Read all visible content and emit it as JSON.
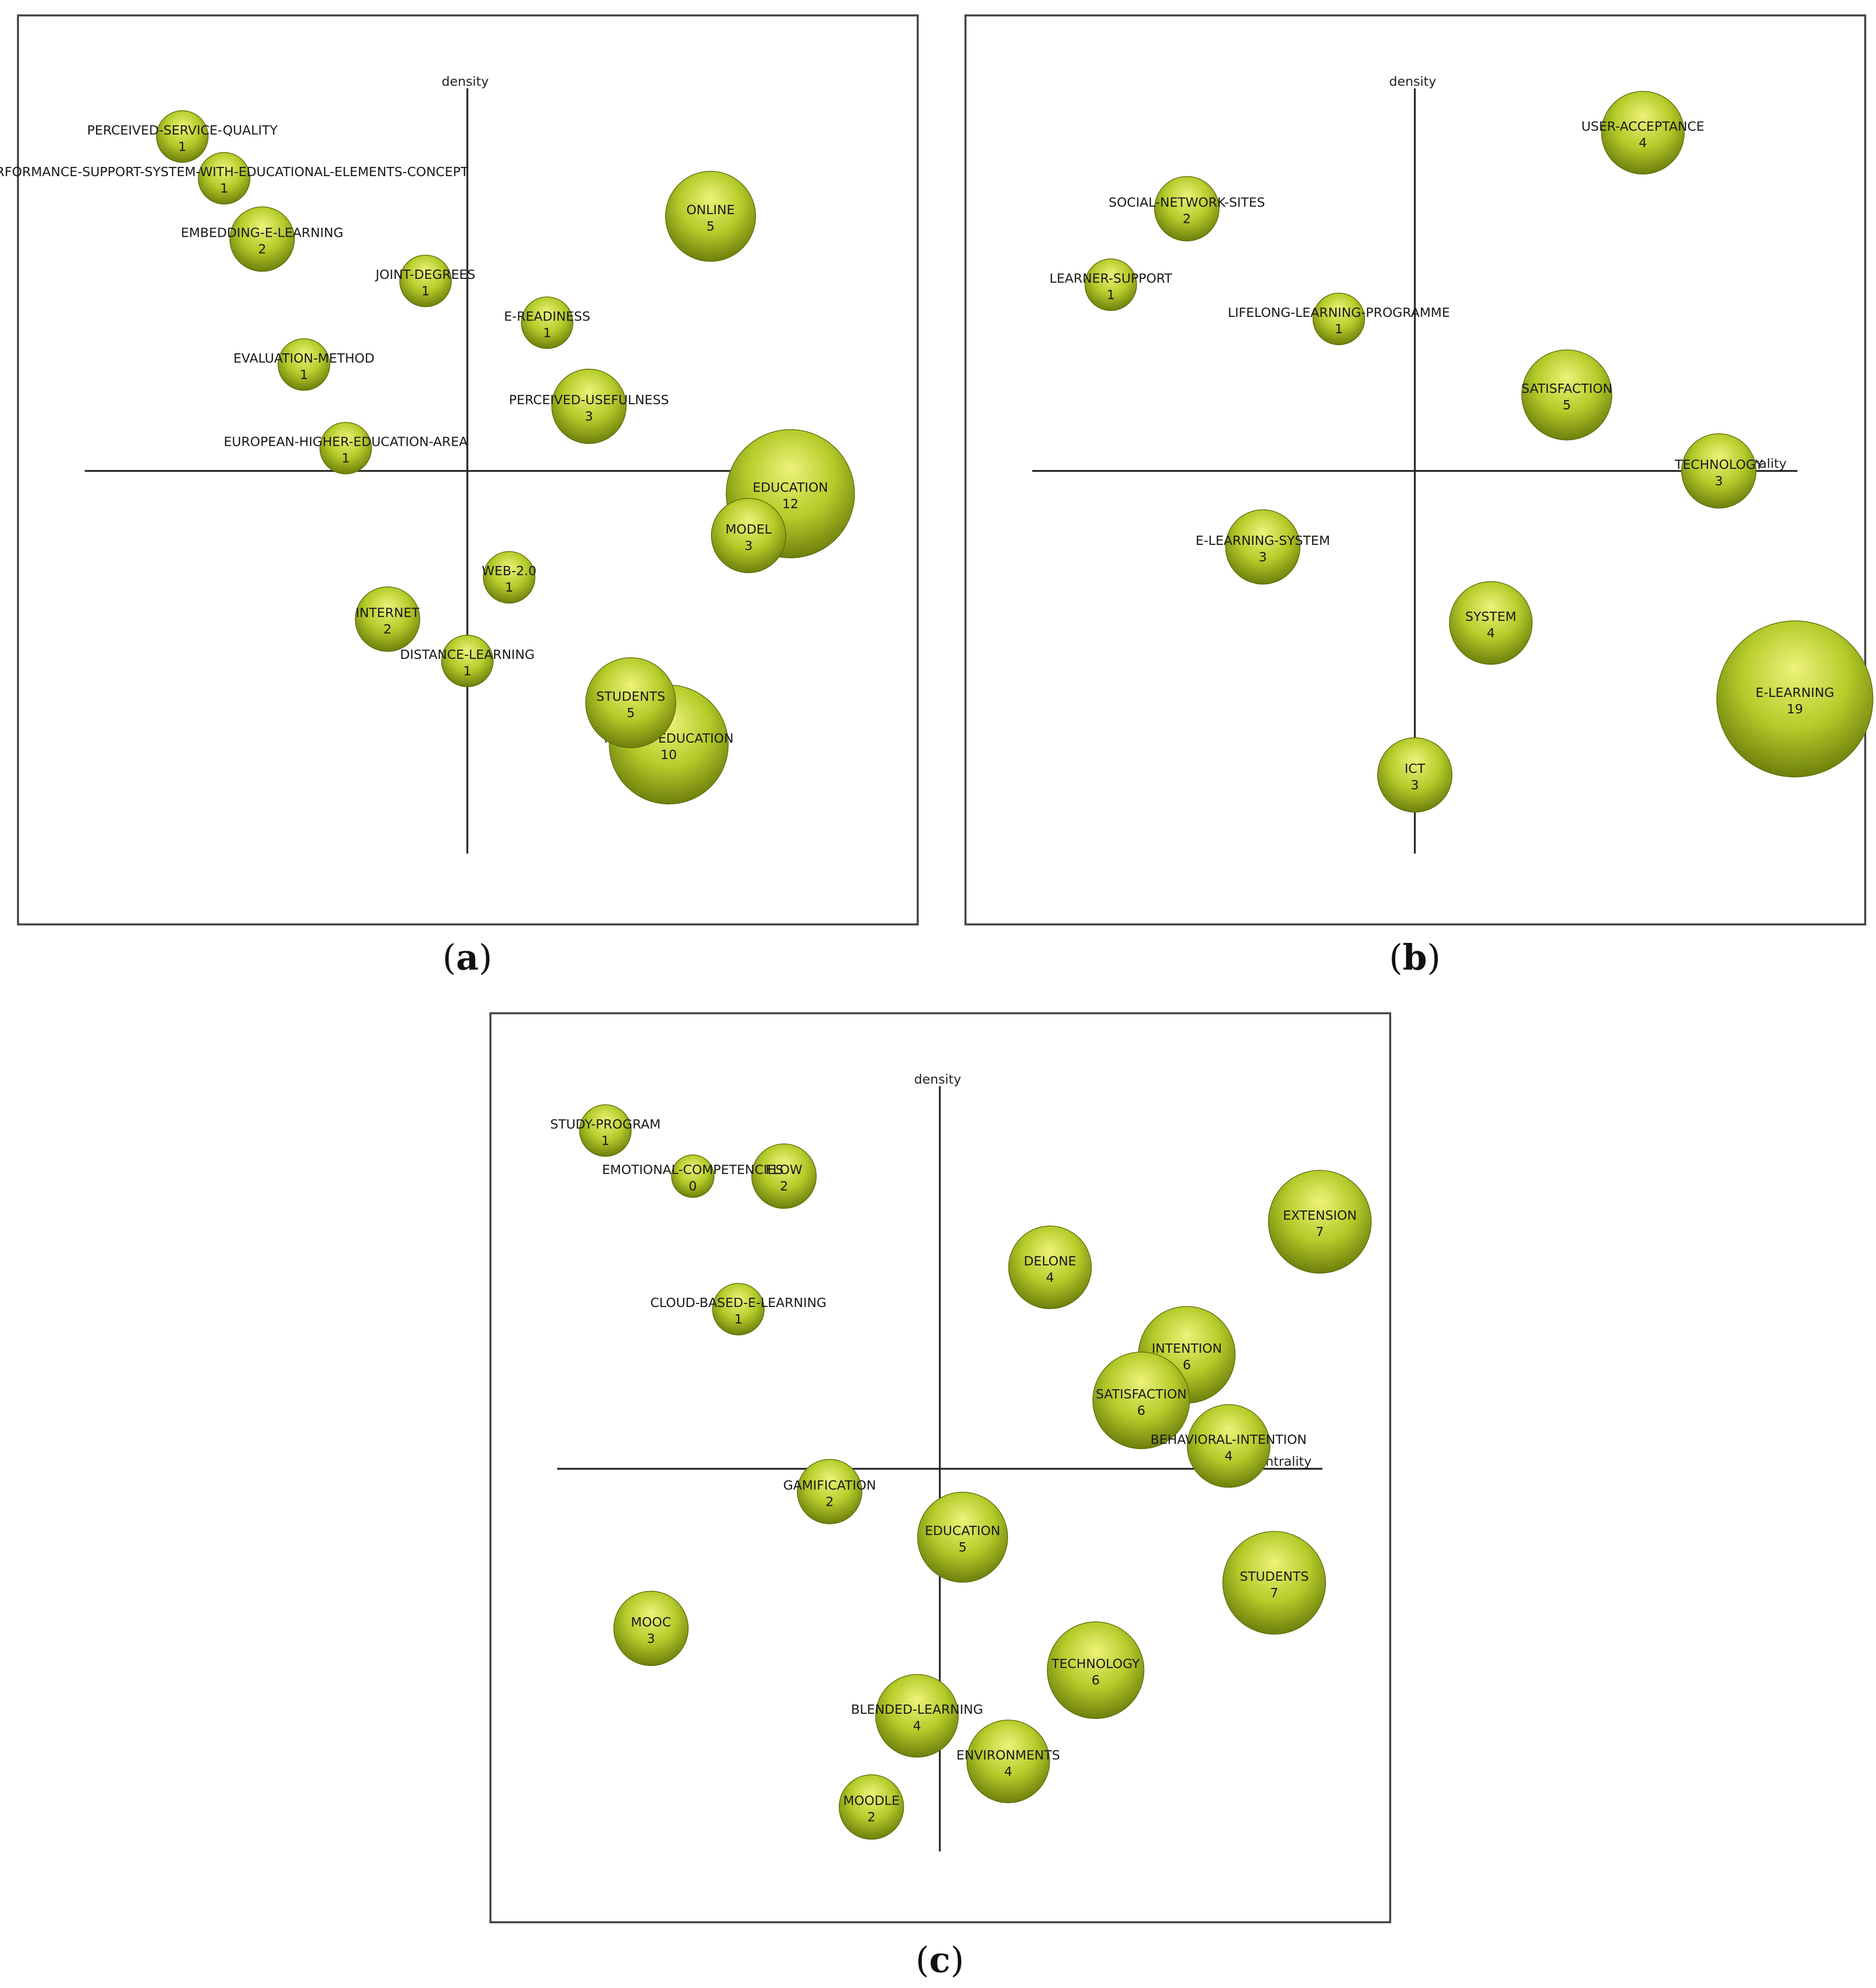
{
  "colors": {
    "bubble_light": "#eef27a",
    "bubble_mid": "#b5cc2a",
    "bubble_dark": "#6f7f0c",
    "bubble_edge": "#5f6e0a"
  },
  "chart_data": [
    {
      "type": "scatter",
      "caption": "a",
      "axis_x_label": "centrality",
      "axis_y_label": "density",
      "points": [
        {
          "label": "PERCEIVED-SERVICE-QUALITY",
          "value": 1,
          "x": -0.75,
          "y": 0.88
        },
        {
          "label": "PERFORMANCE-SUPPORT-SYSTEM-WITH-EDUCATIONAL-ELEMENTS-CONCEPT",
          "value": 1,
          "x": -0.64,
          "y": 0.77
        },
        {
          "label": "ONLINE",
          "value": 5,
          "x": 0.64,
          "y": 0.67
        },
        {
          "label": "EMBEDDING-E-LEARNING",
          "value": 2,
          "x": -0.54,
          "y": 0.61
        },
        {
          "label": "JOINT-DEGREES",
          "value": 1,
          "x": -0.11,
          "y": 0.5
        },
        {
          "label": "E-READINESS",
          "value": 1,
          "x": 0.21,
          "y": 0.39
        },
        {
          "label": "EVALUATION-METHOD",
          "value": 1,
          "x": -0.43,
          "y": 0.28
        },
        {
          "label": "PERCEIVED-USEFULNESS",
          "value": 3,
          "x": 0.32,
          "y": 0.17
        },
        {
          "label": "EUROPEAN-HIGHER-EDUCATION-AREA",
          "value": 1,
          "x": -0.32,
          "y": 0.06
        },
        {
          "label": "EDUCATION",
          "value": 12,
          "x": 0.85,
          "y": -0.06
        },
        {
          "label": "MODEL",
          "value": 3,
          "x": 0.74,
          "y": -0.17
        },
        {
          "label": "WEB-2.0",
          "value": 1,
          "x": 0.11,
          "y": -0.28
        },
        {
          "label": "INTERNET",
          "value": 2,
          "x": -0.21,
          "y": -0.39
        },
        {
          "label": "DISTANCE-LEARNING",
          "value": 1,
          "x": 0.0,
          "y": -0.5
        },
        {
          "label": "STUDENTS",
          "value": 5,
          "x": 0.43,
          "y": -0.61
        },
        {
          "label": "HIGHER-EDUCATION",
          "value": 10,
          "x": 0.53,
          "y": -0.72
        }
      ]
    },
    {
      "type": "scatter",
      "caption": "b",
      "axis_x_label": "centrality",
      "axis_y_label": "density",
      "points": [
        {
          "label": "USER-ACCEPTANCE",
          "value": 4,
          "x": 0.6,
          "y": 0.89
        },
        {
          "label": "SOCIAL-NETWORK-SITES",
          "value": 2,
          "x": -0.6,
          "y": 0.69
        },
        {
          "label": "LEARNER-SUPPORT",
          "value": 1,
          "x": -0.8,
          "y": 0.49
        },
        {
          "label": "LIFELONG-LEARNING-PROGRAMME",
          "value": 1,
          "x": -0.2,
          "y": 0.4
        },
        {
          "label": "SATISFACTION",
          "value": 5,
          "x": 0.4,
          "y": 0.2
        },
        {
          "label": "TECHNOLOGY",
          "value": 3,
          "x": 0.8,
          "y": 0.0
        },
        {
          "label": "E-LEARNING-SYSTEM",
          "value": 3,
          "x": -0.4,
          "y": -0.2
        },
        {
          "label": "SYSTEM",
          "value": 4,
          "x": 0.2,
          "y": -0.4
        },
        {
          "label": "E-LEARNING",
          "value": 19,
          "x": 1.0,
          "y": -0.6
        },
        {
          "label": "ICT",
          "value": 3,
          "x": 0.0,
          "y": -0.8
        }
      ]
    },
    {
      "type": "scatter",
      "caption": "c",
      "axis_x_label": "centrality",
      "axis_y_label": "density",
      "points": [
        {
          "label": "STUDY-PROGRAM",
          "value": 1,
          "x": -0.88,
          "y": 0.89
        },
        {
          "label": "FLOW",
          "value": 2,
          "x": -0.41,
          "y": 0.77
        },
        {
          "label": "EMOTIONAL-COMPETENCIES",
          "value": 0,
          "x": -0.65,
          "y": 0.77
        },
        {
          "label": "EXTENSION",
          "value": 7,
          "x": 1.0,
          "y": 0.65
        },
        {
          "label": "DELONE",
          "value": 4,
          "x": 0.29,
          "y": 0.53
        },
        {
          "label": "CLOUD-BASED-E-LEARNING",
          "value": 1,
          "x": -0.53,
          "y": 0.42
        },
        {
          "label": "INTENTION",
          "value": 6,
          "x": 0.65,
          "y": 0.3
        },
        {
          "label": "SATISFACTION",
          "value": 6,
          "x": 0.53,
          "y": 0.18
        },
        {
          "label": "BEHAVIORAL-INTENTION",
          "value": 4,
          "x": 0.76,
          "y": 0.06
        },
        {
          "label": "GAMIFICATION",
          "value": 2,
          "x": -0.29,
          "y": -0.06
        },
        {
          "label": "EDUCATION",
          "value": 5,
          "x": 0.06,
          "y": -0.18
        },
        {
          "label": "STUDENTS",
          "value": 7,
          "x": 0.88,
          "y": -0.3
        },
        {
          "label": "MOOC",
          "value": 3,
          "x": -0.76,
          "y": -0.42
        },
        {
          "label": "TECHNOLOGY",
          "value": 6,
          "x": 0.41,
          "y": -0.53
        },
        {
          "label": "BLENDED-LEARNING",
          "value": 4,
          "x": -0.06,
          "y": -0.65
        },
        {
          "label": "ENVIRONMENTS",
          "value": 4,
          "x": 0.18,
          "y": -0.77
        },
        {
          "label": "MOODLE",
          "value": 2,
          "x": -0.18,
          "y": -0.89
        }
      ]
    }
  ]
}
